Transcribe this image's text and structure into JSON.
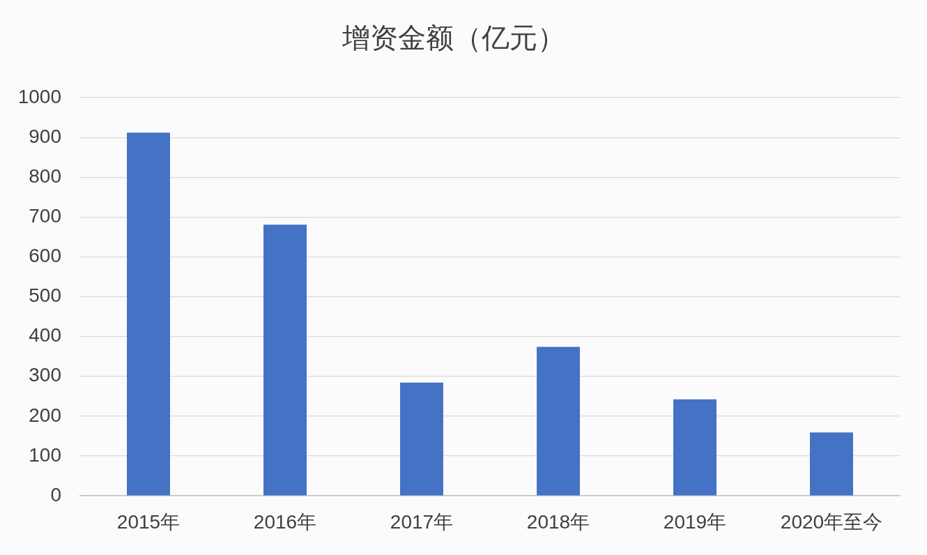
{
  "chart_data": {
    "type": "bar",
    "title": "增资金额（亿元）",
    "categories": [
      "2015年",
      "2016年",
      "2017年",
      "2018年",
      "2019年",
      "2020年至今"
    ],
    "values": [
      912,
      681,
      284,
      374,
      242,
      159
    ],
    "color": "#4472c4",
    "ylim": [
      0,
      1000
    ],
    "yticks": [
      0,
      100,
      200,
      300,
      400,
      500,
      600,
      700,
      800,
      900,
      1000
    ],
    "grid": "y"
  }
}
